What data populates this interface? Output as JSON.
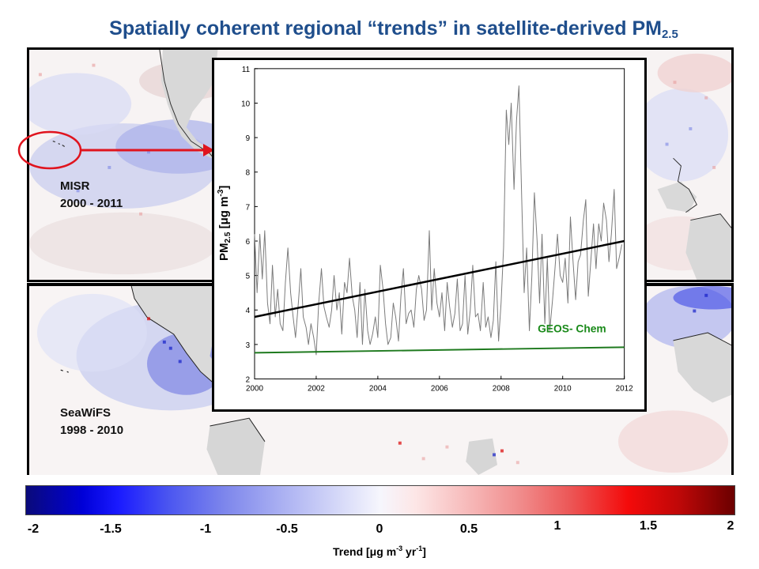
{
  "title": {
    "main": "Spatially coherent regional “trends” in satellite-derived PM",
    "subscript": "2.5"
  },
  "panels": {
    "top": {
      "instrument": "MISR",
      "years": "2000 - 2011"
    },
    "bottom": {
      "instrument": "SeaWiFS",
      "years": "1998 - 2010"
    }
  },
  "inset": {
    "ylabel": {
      "base": "PM",
      "subscript": "2.5",
      "unit_pre": "[μg m",
      "unit_sup": "-3",
      "unit_post": "]"
    },
    "series_label": "GEOS- Chem"
  },
  "colorbar": {
    "ticks": [
      "-2",
      "-1.5",
      "-1",
      "-0.5",
      "0",
      "0.5",
      "1",
      "1.5",
      "2"
    ],
    "label": {
      "pre": "Trend [μg m",
      "sup1": "-3",
      "mid": " yr",
      "sup2": "-1",
      "post": "]"
    }
  },
  "colors": {
    "title": "#1f4e8c",
    "highlight": "#e0141e",
    "observed": "#7a7a7a",
    "trend": "#000000",
    "geos": "#1f7a1f",
    "geos_label": "#1a8a1a"
  },
  "chart_data": {
    "type": "line",
    "xlim": [
      2000,
      2012
    ],
    "ylim": [
      2,
      11
    ],
    "x_ticks": [
      2000,
      2002,
      2004,
      2006,
      2008,
      2010,
      2012
    ],
    "y_ticks": [
      2,
      3,
      4,
      5,
      6,
      7,
      8,
      9,
      10,
      11
    ],
    "series": [
      {
        "kind": "observed",
        "x": [
          2000.0,
          2000.08,
          2000.17,
          2000.25,
          2000.33,
          2000.42,
          2000.5,
          2000.58,
          2000.67,
          2000.75,
          2000.83,
          2000.92,
          2001.0,
          2001.08,
          2001.17,
          2001.25,
          2001.33,
          2001.42,
          2001.5,
          2001.58,
          2001.67,
          2001.75,
          2001.83,
          2001.92,
          2002.0,
          2002.08,
          2002.17,
          2002.25,
          2002.33,
          2002.42,
          2002.5,
          2002.58,
          2002.67,
          2002.75,
          2002.83,
          2002.92,
          2003.0,
          2003.08,
          2003.17,
          2003.25,
          2003.33,
          2003.42,
          2003.5,
          2003.58,
          2003.67,
          2003.75,
          2003.83,
          2003.92,
          2004.0,
          2004.08,
          2004.17,
          2004.25,
          2004.33,
          2004.42,
          2004.5,
          2004.58,
          2004.67,
          2004.75,
          2004.83,
          2004.92,
          2005.0,
          2005.08,
          2005.17,
          2005.25,
          2005.33,
          2005.42,
          2005.5,
          2005.58,
          2005.67,
          2005.75,
          2005.83,
          2005.92,
          2006.0,
          2006.08,
          2006.17,
          2006.25,
          2006.33,
          2006.42,
          2006.5,
          2006.58,
          2006.67,
          2006.75,
          2006.83,
          2006.92,
          2007.0,
          2007.08,
          2007.17,
          2007.25,
          2007.33,
          2007.42,
          2007.5,
          2007.58,
          2007.67,
          2007.75,
          2007.83,
          2007.92,
          2008.0,
          2008.08,
          2008.17,
          2008.25,
          2008.33,
          2008.42,
          2008.5,
          2008.58,
          2008.67,
          2008.75,
          2008.83,
          2008.92,
          2009.0,
          2009.08,
          2009.17,
          2009.25,
          2009.33,
          2009.42,
          2009.5,
          2009.58,
          2009.67,
          2009.75,
          2009.83,
          2009.92,
          2010.0,
          2010.08,
          2010.17,
          2010.25,
          2010.33,
          2010.42,
          2010.5,
          2010.58,
          2010.67,
          2010.75,
          2010.83,
          2010.92,
          2011.0,
          2011.08,
          2011.17,
          2011.25,
          2011.33,
          2011.42,
          2011.5,
          2011.58,
          2011.67,
          2011.75,
          2011.83,
          2011.92
        ],
        "y": [
          6.2,
          4.5,
          6.2,
          4.9,
          6.3,
          4.2,
          3.6,
          5.3,
          3.8,
          4.6,
          3.6,
          3.4,
          4.8,
          5.8,
          4.5,
          3.8,
          3.2,
          4.2,
          5.2,
          3.8,
          3.5,
          3.0,
          3.6,
          3.2,
          2.7,
          4.2,
          5.2,
          4.1,
          3.8,
          3.5,
          4.0,
          5.0,
          4.0,
          4.5,
          3.3,
          4.8,
          4.5,
          5.5,
          4.4,
          4.0,
          3.2,
          4.8,
          3.0,
          4.6,
          3.4,
          3.0,
          3.3,
          3.8,
          3.2,
          5.3,
          4.6,
          3.6,
          3.0,
          3.2,
          4.2,
          3.8,
          3.1,
          4.4,
          5.2,
          3.6,
          3.9,
          4.0,
          3.5,
          4.6,
          5.0,
          4.6,
          3.7,
          4.0,
          6.3,
          4.0,
          5.2,
          4.2,
          3.8,
          4.5,
          3.4,
          4.8,
          4.1,
          3.5,
          3.9,
          4.9,
          3.4,
          3.6,
          5.0,
          3.3,
          4.0,
          5.3,
          3.8,
          3.9,
          3.4,
          4.8,
          3.5,
          3.8,
          3.2,
          3.7,
          5.4,
          3.1,
          4.2,
          5.8,
          9.8,
          8.8,
          10.0,
          7.5,
          9.5,
          10.5,
          7.2,
          4.5,
          5.8,
          3.4,
          5.0,
          7.4,
          6.0,
          4.2,
          6.2,
          3.6,
          5.5,
          3.4,
          4.3,
          5.2,
          6.2,
          5.0,
          4.8,
          5.5,
          4.2,
          6.7,
          5.5,
          4.3,
          5.4,
          5.6,
          6.6,
          7.2,
          4.4,
          5.5,
          6.5,
          5.2,
          6.5,
          6.0,
          7.1,
          6.6,
          5.4,
          6.2,
          7.5,
          5.2,
          5.5,
          5.9
        ]
      },
      {
        "kind": "trend",
        "x": [
          2000,
          2012
        ],
        "y": [
          3.8,
          6.0
        ]
      },
      {
        "name": "GEOS- Chem",
        "x": [
          2000,
          2012
        ],
        "y": [
          2.76,
          2.92
        ]
      }
    ]
  }
}
